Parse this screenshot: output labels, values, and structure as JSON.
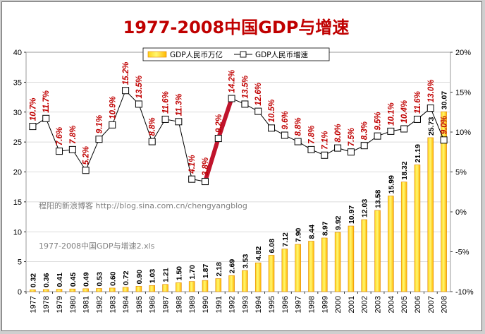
{
  "chart_data": {
    "type": "bar+line",
    "title": "1977-2008中国GDP与增速",
    "categories": [
      "1977",
      "1978",
      "1979",
      "1980",
      "1981",
      "1982",
      "1983",
      "1984",
      "1985",
      "1986",
      "1987",
      "1988",
      "1989",
      "1990",
      "1991",
      "1992",
      "1993",
      "1994",
      "1995",
      "1996",
      "1997",
      "1998",
      "1999",
      "2000",
      "2001",
      "2002",
      "2003",
      "2004",
      "2005",
      "2006",
      "2007",
      "2008"
    ],
    "series": [
      {
        "name": "GDP人民币万亿",
        "type": "bar",
        "axis": "left",
        "values": [
          0.32,
          0.36,
          0.41,
          0.45,
          0.49,
          0.53,
          0.6,
          0.72,
          0.9,
          1.03,
          1.21,
          1.5,
          1.7,
          1.87,
          2.18,
          2.69,
          3.53,
          4.82,
          6.08,
          7.12,
          7.9,
          8.44,
          8.97,
          9.92,
          10.97,
          12.03,
          13.58,
          15.99,
          18.32,
          21.19,
          25.73,
          30.07
        ],
        "labels": [
          "0.32",
          "0.36",
          "0.41",
          "0.45",
          "0.49",
          "0.53",
          "0.60",
          "0.72",
          "0.90",
          "1.03",
          "1.21",
          "1.50",
          "1.70",
          "1.87",
          "2.18",
          "2.69",
          "3.53",
          "4.82",
          "6.08",
          "7.12",
          "7.90",
          "8.44",
          "8.97",
          "9.92",
          "10.97",
          "12.03",
          "13.58",
          "15.99",
          "18.32",
          "21.19",
          "25.73",
          "30.07"
        ]
      },
      {
        "name": "GDP人民币增速",
        "type": "line",
        "axis": "right",
        "values": [
          10.7,
          11.7,
          7.6,
          7.8,
          5.2,
          9.1,
          10.9,
          15.2,
          13.5,
          8.8,
          11.6,
          11.3,
          4.1,
          3.8,
          9.2,
          14.2,
          13.5,
          12.6,
          10.5,
          9.6,
          8.8,
          7.8,
          7.1,
          8.0,
          7.5,
          8.3,
          9.5,
          10.1,
          10.4,
          11.6,
          13.0,
          9.0
        ],
        "labels": [
          "10.7%",
          "11.7%",
          "7.6%",
          "7.8%",
          "5.2%",
          "9.1%",
          "10.9%",
          "15.2%",
          "13.5%",
          "8.8%",
          "11.6%",
          "11.3%",
          "4.1%",
          "3.8%",
          "9.2%",
          "14.2%",
          "13.5%",
          "12.6%",
          "10.5%",
          "9.6%",
          "8.8%",
          "7.8%",
          "7.1%",
          "8.0%",
          "7.5%",
          "8.3%",
          "9.5%",
          "10.1%",
          "10.4%",
          "11.6%",
          "13.0%",
          "9.0%"
        ]
      }
    ],
    "highlight": {
      "from": "1990",
      "to": "1992",
      "color": "#c0142c"
    },
    "y_left": {
      "min": 0,
      "max": 40,
      "ticks": [
        "0",
        "5",
        "10",
        "15",
        "20",
        "25",
        "30",
        "35",
        "40"
      ]
    },
    "y_right": {
      "min": -10,
      "max": 20,
      "ticks": [
        "-10%",
        "-5%",
        "0%",
        "5%",
        "10%",
        "15%",
        "20%"
      ]
    },
    "legend": {
      "bar": "GDP人民币万亿",
      "line": "GDP人民币增速",
      "position": "top-center"
    },
    "colors": {
      "bar_top": "#fff34a",
      "bar_bottom": "#ffcf12",
      "bar_edge": "#e08000",
      "line": "#000000",
      "title": "#c00000",
      "rate_label": "#c00000"
    }
  },
  "watermark": {
    "blog": "程阳的新浪博客   http://blog.sina.com.cn/chengyangblog",
    "file": "1977-2008中国GDP与增速2.xls"
  }
}
